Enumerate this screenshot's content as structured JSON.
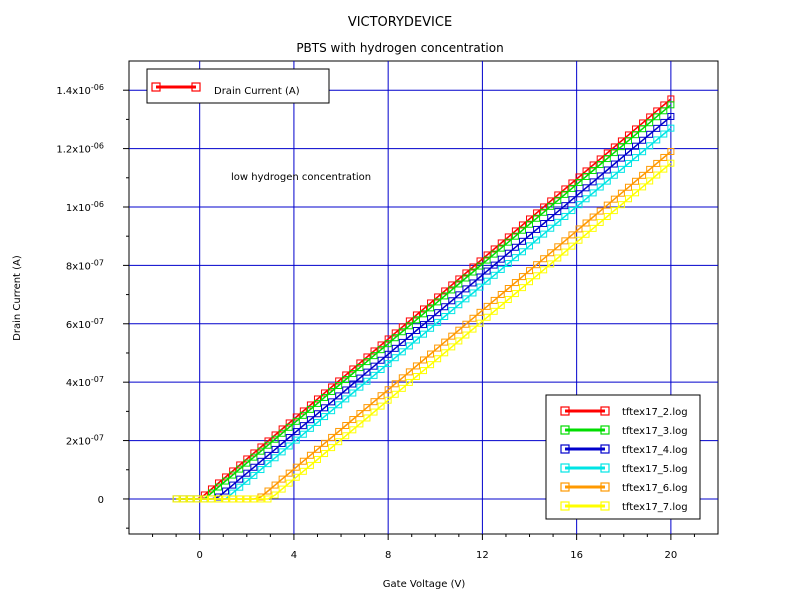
{
  "chart_data": {
    "type": "line",
    "title": "VICTORYDEVICE",
    "subtitle": "PBTS with hydrogen concentration",
    "xlabel": "Gate Voltage (V)",
    "ylabel": "Drain Current (A)",
    "xlim": [
      -3,
      22
    ],
    "ylim": [
      -1.2e-07,
      1.5e-06
    ],
    "grid": true,
    "x_ticks": [
      {
        "value": 0,
        "label": "0"
      },
      {
        "value": 4,
        "label": "4"
      },
      {
        "value": 8,
        "label": "8"
      },
      {
        "value": 12,
        "label": "12"
      },
      {
        "value": 16,
        "label": "16"
      },
      {
        "value": 20,
        "label": "20"
      }
    ],
    "y_ticks": [
      {
        "value": 0,
        "mant": "0",
        "exp": ""
      },
      {
        "value": 2e-07,
        "mant": "2x10",
        "exp": "-07"
      },
      {
        "value": 4e-07,
        "mant": "4x10",
        "exp": "-07"
      },
      {
        "value": 6e-07,
        "mant": "6x10",
        "exp": "-07"
      },
      {
        "value": 8e-07,
        "mant": "8x10",
        "exp": "-07"
      },
      {
        "value": 1e-06,
        "mant": "1x10",
        "exp": "-06"
      },
      {
        "value": 1.2e-06,
        "mant": "1.2x10",
        "exp": "-06"
      },
      {
        "value": 1.4e-06,
        "mant": "1.4x10",
        "exp": "-06"
      }
    ],
    "quantity_legend": {
      "label": "Drain Current (A)",
      "color": "#ff0000",
      "placement": "top-left"
    },
    "annotation": "low hydrogen concentration",
    "legend_placement": "bottom-right",
    "series": [
      {
        "name": "tftex17_2.log",
        "color": "#ff0000",
        "x": [
          -1,
          0,
          20
        ],
        "y": [
          0,
          0,
          1.37e-06
        ]
      },
      {
        "name": "tftex17_3.log",
        "color": "#00dd00",
        "x": [
          -1,
          0.2,
          20
        ],
        "y": [
          0,
          0,
          1.35e-06
        ]
      },
      {
        "name": "tftex17_4.log",
        "color": "#0000cc",
        "x": [
          -1,
          0.7,
          20
        ],
        "y": [
          0,
          0,
          1.31e-06
        ]
      },
      {
        "name": "tftex17_5.log",
        "color": "#00e5e5",
        "x": [
          -1,
          1.1,
          20
        ],
        "y": [
          0,
          0,
          1.27e-06
        ]
      },
      {
        "name": "tftex17_6.log",
        "color": "#ff9900",
        "x": [
          -1,
          2.5,
          20
        ],
        "y": [
          0,
          0,
          1.19e-06
        ]
      },
      {
        "name": "tftex17_7.log",
        "color": "#ffff00",
        "x": [
          -1,
          3.0,
          20
        ],
        "y": [
          0,
          0,
          1.15e-06
        ]
      }
    ]
  }
}
